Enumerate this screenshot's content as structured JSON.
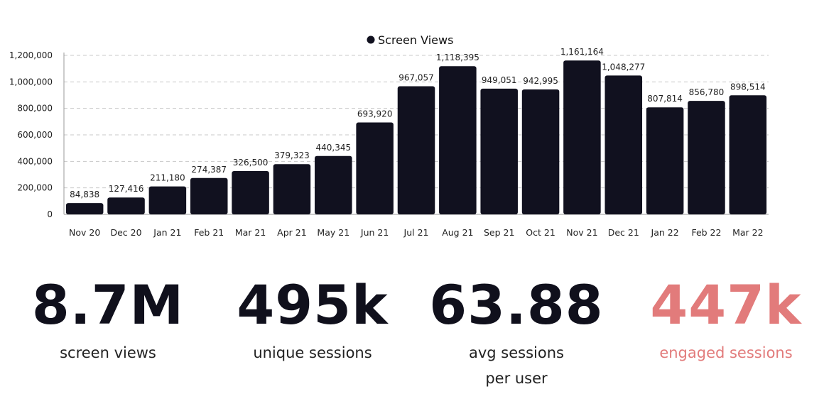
{
  "colors": {
    "bar": "#11111f",
    "accent": "#e27b7b",
    "grid": "#c8c8c8"
  },
  "chart_data": {
    "type": "bar",
    "title": "",
    "legend": {
      "label": "Screen Views",
      "position": "top-center"
    },
    "categories": [
      "Nov 20",
      "Dec 20",
      "Jan 21",
      "Feb 21",
      "Mar 21",
      "Apr 21",
      "May 21",
      "Jun 21",
      "Jul 21",
      "Aug 21",
      "Sep 21",
      "Oct 21",
      "Nov 21",
      "Dec 21",
      "Jan 22",
      "Feb 22",
      "Mar 22"
    ],
    "values": [
      84838,
      127416,
      211180,
      274387,
      326500,
      379323,
      440345,
      693920,
      967057,
      1118395,
      949051,
      942995,
      1161164,
      1048277,
      807814,
      856780,
      898514
    ],
    "data_labels": [
      "84,838",
      "127,416",
      "211,180",
      "274,387",
      "326,500",
      "379,323",
      "440,345",
      "693,920",
      "967,057",
      "1,118,395",
      "949,051",
      "942,995",
      "1,161,164",
      "1,048,277",
      "807,814",
      "856,780",
      "898,514"
    ],
    "y_ticks": [
      0,
      200000,
      400000,
      600000,
      800000,
      1000000,
      1200000
    ],
    "y_tick_labels": [
      "0",
      "200,000",
      "400,000",
      "600,000",
      "800,000",
      "1,000,000",
      "1,200,000"
    ],
    "ylim": [
      0,
      1200000
    ],
    "grid": true,
    "xlabel": "",
    "ylabel": ""
  },
  "stats": [
    {
      "value": "8.7M",
      "label": "screen views"
    },
    {
      "value": "495k",
      "label": "unique sessions"
    },
    {
      "value": "63.88",
      "label": "avg sessions\nper user"
    },
    {
      "value": "447k",
      "label": "engaged sessions"
    }
  ]
}
